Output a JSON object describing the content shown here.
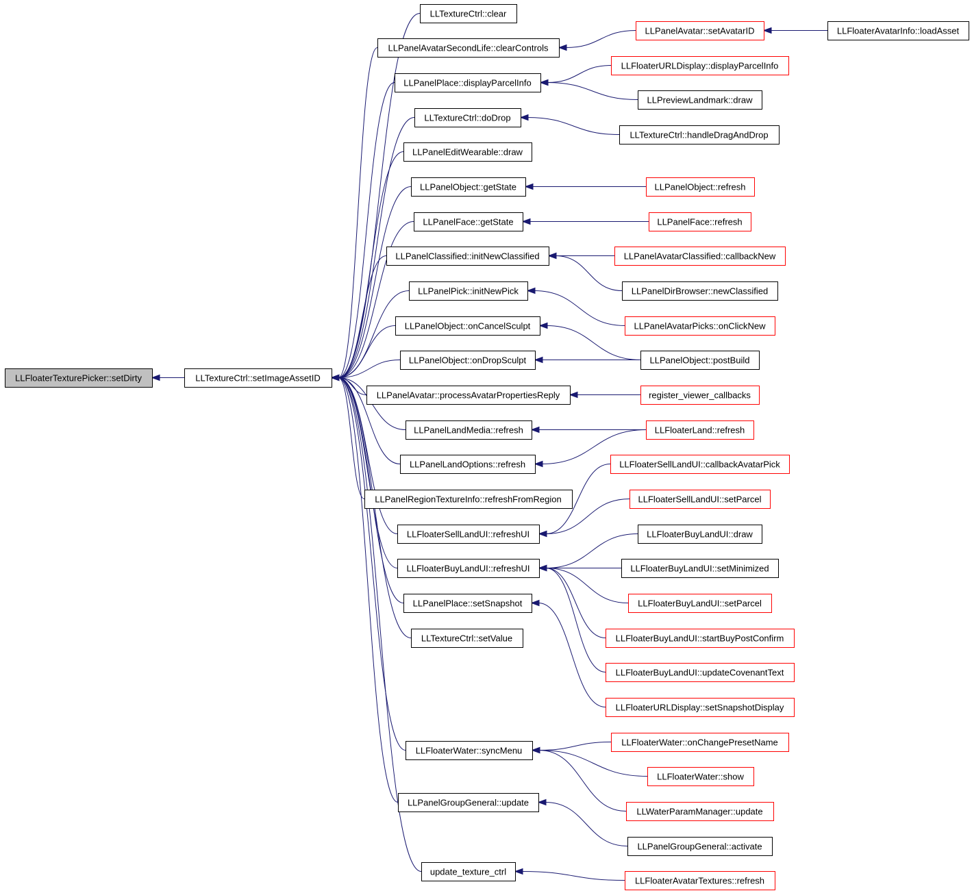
{
  "diagram": {
    "colors": {
      "edge": "#191970",
      "border_default": "#000000",
      "border_truncated": "#ff0000",
      "focus_fill": "#c0c0c0",
      "node_fill": "#ffffff"
    },
    "nodes": [
      {
        "id": "n_setDirty",
        "label": "LLFloaterTexturePicker::setDirty",
        "style": "focus"
      },
      {
        "id": "n_setImageAssetID",
        "label": "LLTextureCtrl::setImageAssetID",
        "style": "normal"
      },
      {
        "id": "n_clear",
        "label": "LLTextureCtrl::clear",
        "style": "normal"
      },
      {
        "id": "n_clearControls",
        "label": "LLPanelAvatarSecondLife::clearControls",
        "style": "normal"
      },
      {
        "id": "n_setAvatarID",
        "label": "LLPanelAvatar::setAvatarID",
        "style": "truncated"
      },
      {
        "id": "n_loadAsset",
        "label": "LLFloaterAvatarInfo::loadAsset",
        "style": "normal"
      },
      {
        "id": "n_displayParcelInfo",
        "label": "LLPanelPlace::displayParcelInfo",
        "style": "normal"
      },
      {
        "id": "n_urlDisplayParcelInfo",
        "label": "LLFloaterURLDisplay::displayParcelInfo",
        "style": "truncated"
      },
      {
        "id": "n_previewLandmarkDraw",
        "label": "LLPreviewLandmark::draw",
        "style": "normal"
      },
      {
        "id": "n_doDrop",
        "label": "LLTextureCtrl::doDrop",
        "style": "normal"
      },
      {
        "id": "n_handleDragAndDrop",
        "label": "LLTextureCtrl::handleDragAndDrop",
        "style": "normal"
      },
      {
        "id": "n_editWearableDraw",
        "label": "LLPanelEditWearable::draw",
        "style": "normal"
      },
      {
        "id": "n_objectGetState",
        "label": "LLPanelObject::getState",
        "style": "normal"
      },
      {
        "id": "n_objectRefresh",
        "label": "LLPanelObject::refresh",
        "style": "truncated"
      },
      {
        "id": "n_faceGetState",
        "label": "LLPanelFace::getState",
        "style": "normal"
      },
      {
        "id": "n_faceRefresh",
        "label": "LLPanelFace::refresh",
        "style": "truncated"
      },
      {
        "id": "n_initNewClassified",
        "label": "LLPanelClassified::initNewClassified",
        "style": "normal"
      },
      {
        "id": "n_callbackNew",
        "label": "LLPanelAvatarClassified::callbackNew",
        "style": "truncated"
      },
      {
        "id": "n_newClassified",
        "label": "LLPanelDirBrowser::newClassified",
        "style": "normal"
      },
      {
        "id": "n_initNewPick",
        "label": "LLPanelPick::initNewPick",
        "style": "normal"
      },
      {
        "id": "n_onClickNew",
        "label": "LLPanelAvatarPicks::onClickNew",
        "style": "truncated"
      },
      {
        "id": "n_onCancelSculpt",
        "label": "LLPanelObject::onCancelSculpt",
        "style": "normal"
      },
      {
        "id": "n_postBuild",
        "label": "LLPanelObject::postBuild",
        "style": "normal"
      },
      {
        "id": "n_onDropSculpt",
        "label": "LLPanelObject::onDropSculpt",
        "style": "normal"
      },
      {
        "id": "n_processAvatarPropertiesReply",
        "label": "LLPanelAvatar::processAvatarPropertiesReply",
        "style": "normal"
      },
      {
        "id": "n_registerViewerCallbacks",
        "label": "register_viewer_callbacks",
        "style": "truncated"
      },
      {
        "id": "n_landMediaRefresh",
        "label": "LLPanelLandMedia::refresh",
        "style": "normal"
      },
      {
        "id": "n_floaterLandRefresh",
        "label": "LLFloaterLand::refresh",
        "style": "truncated"
      },
      {
        "id": "n_landOptionsRefresh",
        "label": "LLPanelLandOptions::refresh",
        "style": "normal"
      },
      {
        "id": "n_refreshFromRegion",
        "label": "LLPanelRegionTextureInfo::refreshFromRegion",
        "style": "normal"
      },
      {
        "id": "n_sellCallbackAvatarPick",
        "label": "LLFloaterSellLandUI::callbackAvatarPick",
        "style": "truncated"
      },
      {
        "id": "n_sellSetParcel",
        "label": "LLFloaterSellLandUI::setParcel",
        "style": "truncated"
      },
      {
        "id": "n_sellRefreshUI",
        "label": "LLFloaterSellLandUI::refreshUI",
        "style": "normal"
      },
      {
        "id": "n_buyDraw",
        "label": "LLFloaterBuyLandUI::draw",
        "style": "normal"
      },
      {
        "id": "n_buyRefreshUI",
        "label": "LLFloaterBuyLandUI::refreshUI",
        "style": "normal"
      },
      {
        "id": "n_buySetMinimized",
        "label": "LLFloaterBuyLandUI::setMinimized",
        "style": "normal"
      },
      {
        "id": "n_buySetParcel",
        "label": "LLFloaterBuyLandUI::setParcel",
        "style": "truncated"
      },
      {
        "id": "n_placeSetSnapshot",
        "label": "LLPanelPlace::setSnapshot",
        "style": "normal"
      },
      {
        "id": "n_buyStartBuyPostConfirm",
        "label": "LLFloaterBuyLandUI::startBuyPostConfirm",
        "style": "truncated"
      },
      {
        "id": "n_textureSetValue",
        "label": "LLTextureCtrl::setValue",
        "style": "normal"
      },
      {
        "id": "n_buyUpdateCovenantText",
        "label": "LLFloaterBuyLandUI::updateCovenantText",
        "style": "truncated"
      },
      {
        "id": "n_urlSetSnapshotDisplay",
        "label": "LLFloaterURLDisplay::setSnapshotDisplay",
        "style": "truncated"
      },
      {
        "id": "n_waterOnChangePresetName",
        "label": "LLFloaterWater::onChangePresetName",
        "style": "truncated"
      },
      {
        "id": "n_waterSyncMenu",
        "label": "LLFloaterWater::syncMenu",
        "style": "normal"
      },
      {
        "id": "n_waterShow",
        "label": "LLFloaterWater::show",
        "style": "truncated"
      },
      {
        "id": "n_groupGeneralUpdate",
        "label": "LLPanelGroupGeneral::update",
        "style": "normal"
      },
      {
        "id": "n_waterParamUpdate",
        "label": "LLWaterParamManager::update",
        "style": "truncated"
      },
      {
        "id": "n_groupGeneralActivate",
        "label": "LLPanelGroupGeneral::activate",
        "style": "normal"
      },
      {
        "id": "n_updateTextureCtrl",
        "label": "update_texture_ctrl",
        "style": "normal"
      },
      {
        "id": "n_avatarTexturesRefresh",
        "label": "LLFloaterAvatarTextures::refresh",
        "style": "truncated"
      }
    ],
    "edges": [
      [
        "n_setImageAssetID",
        "n_setDirty"
      ],
      [
        "n_clear",
        "n_setImageAssetID"
      ],
      [
        "n_clearControls",
        "n_setImageAssetID"
      ],
      [
        "n_displayParcelInfo",
        "n_setImageAssetID"
      ],
      [
        "n_doDrop",
        "n_setImageAssetID"
      ],
      [
        "n_editWearableDraw",
        "n_setImageAssetID"
      ],
      [
        "n_objectGetState",
        "n_setImageAssetID"
      ],
      [
        "n_faceGetState",
        "n_setImageAssetID"
      ],
      [
        "n_initNewClassified",
        "n_setImageAssetID"
      ],
      [
        "n_initNewPick",
        "n_setImageAssetID"
      ],
      [
        "n_onCancelSculpt",
        "n_setImageAssetID"
      ],
      [
        "n_onDropSculpt",
        "n_setImageAssetID"
      ],
      [
        "n_processAvatarPropertiesReply",
        "n_setImageAssetID"
      ],
      [
        "n_landMediaRefresh",
        "n_setImageAssetID"
      ],
      [
        "n_landOptionsRefresh",
        "n_setImageAssetID"
      ],
      [
        "n_refreshFromRegion",
        "n_setImageAssetID"
      ],
      [
        "n_sellRefreshUI",
        "n_setImageAssetID"
      ],
      [
        "n_buyRefreshUI",
        "n_setImageAssetID"
      ],
      [
        "n_placeSetSnapshot",
        "n_setImageAssetID"
      ],
      [
        "n_textureSetValue",
        "n_setImageAssetID"
      ],
      [
        "n_waterSyncMenu",
        "n_setImageAssetID"
      ],
      [
        "n_groupGeneralUpdate",
        "n_setImageAssetID"
      ],
      [
        "n_updateTextureCtrl",
        "n_setImageAssetID"
      ],
      [
        "n_setAvatarID",
        "n_clearControls"
      ],
      [
        "n_loadAsset",
        "n_setAvatarID"
      ],
      [
        "n_urlDisplayParcelInfo",
        "n_displayParcelInfo"
      ],
      [
        "n_previewLandmarkDraw",
        "n_displayParcelInfo"
      ],
      [
        "n_handleDragAndDrop",
        "n_doDrop"
      ],
      [
        "n_objectRefresh",
        "n_objectGetState"
      ],
      [
        "n_faceRefresh",
        "n_faceGetState"
      ],
      [
        "n_callbackNew",
        "n_initNewClassified"
      ],
      [
        "n_newClassified",
        "n_initNewClassified"
      ],
      [
        "n_onClickNew",
        "n_initNewPick"
      ],
      [
        "n_postBuild",
        "n_onCancelSculpt"
      ],
      [
        "n_postBuild",
        "n_onDropSculpt"
      ],
      [
        "n_registerViewerCallbacks",
        "n_processAvatarPropertiesReply"
      ],
      [
        "n_floaterLandRefresh",
        "n_landMediaRefresh"
      ],
      [
        "n_floaterLandRefresh",
        "n_landOptionsRefresh"
      ],
      [
        "n_sellCallbackAvatarPick",
        "n_sellRefreshUI"
      ],
      [
        "n_sellSetParcel",
        "n_sellRefreshUI"
      ],
      [
        "n_buyDraw",
        "n_buyRefreshUI"
      ],
      [
        "n_buySetMinimized",
        "n_buyRefreshUI"
      ],
      [
        "n_buySetParcel",
        "n_buyRefreshUI"
      ],
      [
        "n_buyStartBuyPostConfirm",
        "n_buyRefreshUI"
      ],
      [
        "n_buyUpdateCovenantText",
        "n_buyRefreshUI"
      ],
      [
        "n_urlSetSnapshotDisplay",
        "n_placeSetSnapshot"
      ],
      [
        "n_waterOnChangePresetName",
        "n_waterSyncMenu"
      ],
      [
        "n_waterShow",
        "n_waterSyncMenu"
      ],
      [
        "n_waterParamUpdate",
        "n_waterSyncMenu"
      ],
      [
        "n_groupGeneralActivate",
        "n_groupGeneralUpdate"
      ],
      [
        "n_avatarTexturesRefresh",
        "n_updateTextureCtrl"
      ]
    ]
  }
}
